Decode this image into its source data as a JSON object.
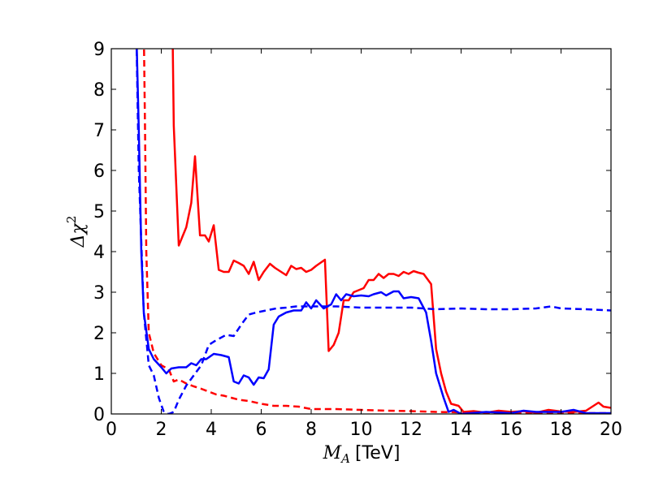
{
  "chart_data": {
    "type": "line",
    "xlabel": {
      "symbol": "M",
      "subscript": "A",
      "unit": "[TeV]"
    },
    "ylabel": {
      "symbol": "Δχ",
      "superscript": "2"
    },
    "xlim": [
      0,
      20
    ],
    "ylim": [
      0,
      9
    ],
    "xticks": [
      0,
      2,
      4,
      6,
      8,
      10,
      12,
      14,
      16,
      18,
      20
    ],
    "yticks": [
      0,
      1,
      2,
      3,
      4,
      5,
      6,
      7,
      8,
      9
    ],
    "series": [
      {
        "color": "#ff0000",
        "style": "solid",
        "x": [
          2.45,
          2.5,
          2.7,
          3.0,
          3.2,
          3.35,
          3.55,
          3.75,
          3.9,
          4.1,
          4.3,
          4.5,
          4.7,
          4.9,
          5.1,
          5.3,
          5.5,
          5.7,
          5.9,
          6.1,
          6.35,
          6.55,
          6.8,
          7.0,
          7.2,
          7.4,
          7.6,
          7.8,
          8.0,
          8.2,
          8.55,
          8.7,
          8.9,
          9.1,
          9.3,
          9.5,
          9.7,
          9.9,
          10.1,
          10.3,
          10.5,
          10.7,
          10.9,
          11.1,
          11.3,
          11.5,
          11.7,
          11.9,
          12.1,
          12.3,
          12.5,
          12.8,
          13.0,
          13.2,
          13.4,
          13.6,
          13.9,
          14.1,
          14.5,
          15.0,
          15.5,
          16.0,
          16.5,
          17.0,
          17.5,
          18.0,
          18.5,
          19.0,
          19.5,
          19.7,
          20.0
        ],
        "values": [
          9.5,
          7.1,
          4.15,
          4.6,
          5.2,
          6.35,
          4.4,
          4.4,
          4.25,
          4.65,
          3.55,
          3.5,
          3.5,
          3.78,
          3.72,
          3.65,
          3.45,
          3.75,
          3.3,
          3.5,
          3.7,
          3.6,
          3.5,
          3.42,
          3.65,
          3.57,
          3.6,
          3.5,
          3.55,
          3.65,
          3.8,
          1.55,
          1.7,
          2.0,
          2.8,
          2.8,
          3.0,
          3.05,
          3.1,
          3.3,
          3.3,
          3.45,
          3.35,
          3.45,
          3.45,
          3.4,
          3.5,
          3.45,
          3.52,
          3.48,
          3.45,
          3.2,
          1.6,
          1.0,
          0.55,
          0.25,
          0.2,
          0.05,
          0.07,
          0.03,
          0.08,
          0.05,
          0.07,
          0.03,
          0.1,
          0.06,
          0.05,
          0.08,
          0.28,
          0.18,
          0.15
        ]
      },
      {
        "color": "#ff0000",
        "style": "dashed",
        "x": [
          1.3,
          1.35,
          1.4,
          1.5,
          1.7,
          2.0,
          2.3,
          2.5,
          2.7,
          3.0,
          3.3,
          3.6,
          3.9,
          4.2,
          4.5,
          4.8,
          5.1,
          5.5,
          6.0,
          6.5,
          7.0,
          7.5,
          8.0,
          9.0,
          10.0,
          11.0,
          12.0,
          13.0,
          14.0,
          16.0,
          18.0,
          20.0
        ],
        "values": [
          9.5,
          7,
          4,
          2.0,
          1.5,
          1.2,
          1.1,
          0.8,
          0.85,
          0.75,
          0.68,
          0.62,
          0.55,
          0.48,
          0.45,
          0.4,
          0.35,
          0.32,
          0.25,
          0.2,
          0.2,
          0.18,
          0.12,
          0.12,
          0.1,
          0.08,
          0.07,
          0.05,
          0.04,
          0.03,
          0.02,
          0.02
        ]
      },
      {
        "color": "#0000ff",
        "style": "solid",
        "x": [
          1.0,
          1.1,
          1.2,
          1.3,
          1.5,
          1.7,
          2.0,
          2.2,
          2.4,
          2.7,
          3.0,
          3.2,
          3.4,
          3.6,
          3.8,
          4.1,
          4.4,
          4.7,
          4.9,
          5.1,
          5.3,
          5.5,
          5.7,
          5.9,
          6.1,
          6.3,
          6.5,
          6.7,
          7.0,
          7.3,
          7.6,
          7.8,
          8.0,
          8.2,
          8.5,
          8.8,
          9.0,
          9.2,
          9.4,
          9.7,
          10.0,
          10.3,
          10.5,
          10.8,
          11.0,
          11.3,
          11.5,
          11.7,
          12.0,
          12.3,
          12.6,
          12.8,
          13.0,
          13.3,
          13.5,
          13.7,
          14.0,
          15.0,
          16.0,
          16.5,
          17.0,
          18.0,
          18.5,
          19.0,
          20.0
        ],
        "values": [
          9.5,
          7,
          4,
          2.5,
          1.6,
          1.35,
          1.15,
          1.0,
          1.12,
          1.15,
          1.15,
          1.25,
          1.2,
          1.35,
          1.35,
          1.48,
          1.45,
          1.4,
          0.8,
          0.75,
          0.95,
          0.9,
          0.72,
          0.9,
          0.88,
          1.1,
          2.2,
          2.4,
          2.5,
          2.55,
          2.55,
          2.75,
          2.6,
          2.8,
          2.6,
          2.7,
          2.95,
          2.8,
          2.95,
          2.9,
          2.92,
          2.9,
          2.95,
          3.0,
          2.92,
          3.02,
          3.02,
          2.85,
          2.88,
          2.85,
          2.5,
          1.8,
          1.0,
          0.4,
          0.05,
          0.1,
          0.0,
          0.05,
          0.02,
          0.08,
          0.05,
          0.05,
          0.1,
          0.02,
          0.02
        ]
      },
      {
        "color": "#0000ff",
        "style": "dashed",
        "x": [
          1.0,
          1.1,
          1.3,
          1.5,
          1.7,
          1.9,
          2.1,
          2.3,
          2.5,
          2.7,
          3.0,
          3.3,
          3.6,
          3.9,
          4.1,
          4.3,
          4.6,
          4.9,
          5.2,
          5.5,
          5.8,
          6.2,
          6.6,
          7.0,
          7.4,
          8.0,
          9.0,
          10.0,
          11.0,
          12.0,
          13.0,
          14.0,
          15.0,
          16.0,
          17.0,
          17.6,
          18.0,
          19.0,
          20.0
        ],
        "values": [
          9.5,
          6,
          2.5,
          1.2,
          0.95,
          0.4,
          0.05,
          0.0,
          0.05,
          0.35,
          0.7,
          0.95,
          1.2,
          1.7,
          1.78,
          1.85,
          1.95,
          1.92,
          2.2,
          2.45,
          2.5,
          2.55,
          2.6,
          2.62,
          2.65,
          2.65,
          2.65,
          2.62,
          2.62,
          2.62,
          2.58,
          2.6,
          2.58,
          2.58,
          2.6,
          2.65,
          2.6,
          2.58,
          2.55
        ]
      }
    ]
  }
}
